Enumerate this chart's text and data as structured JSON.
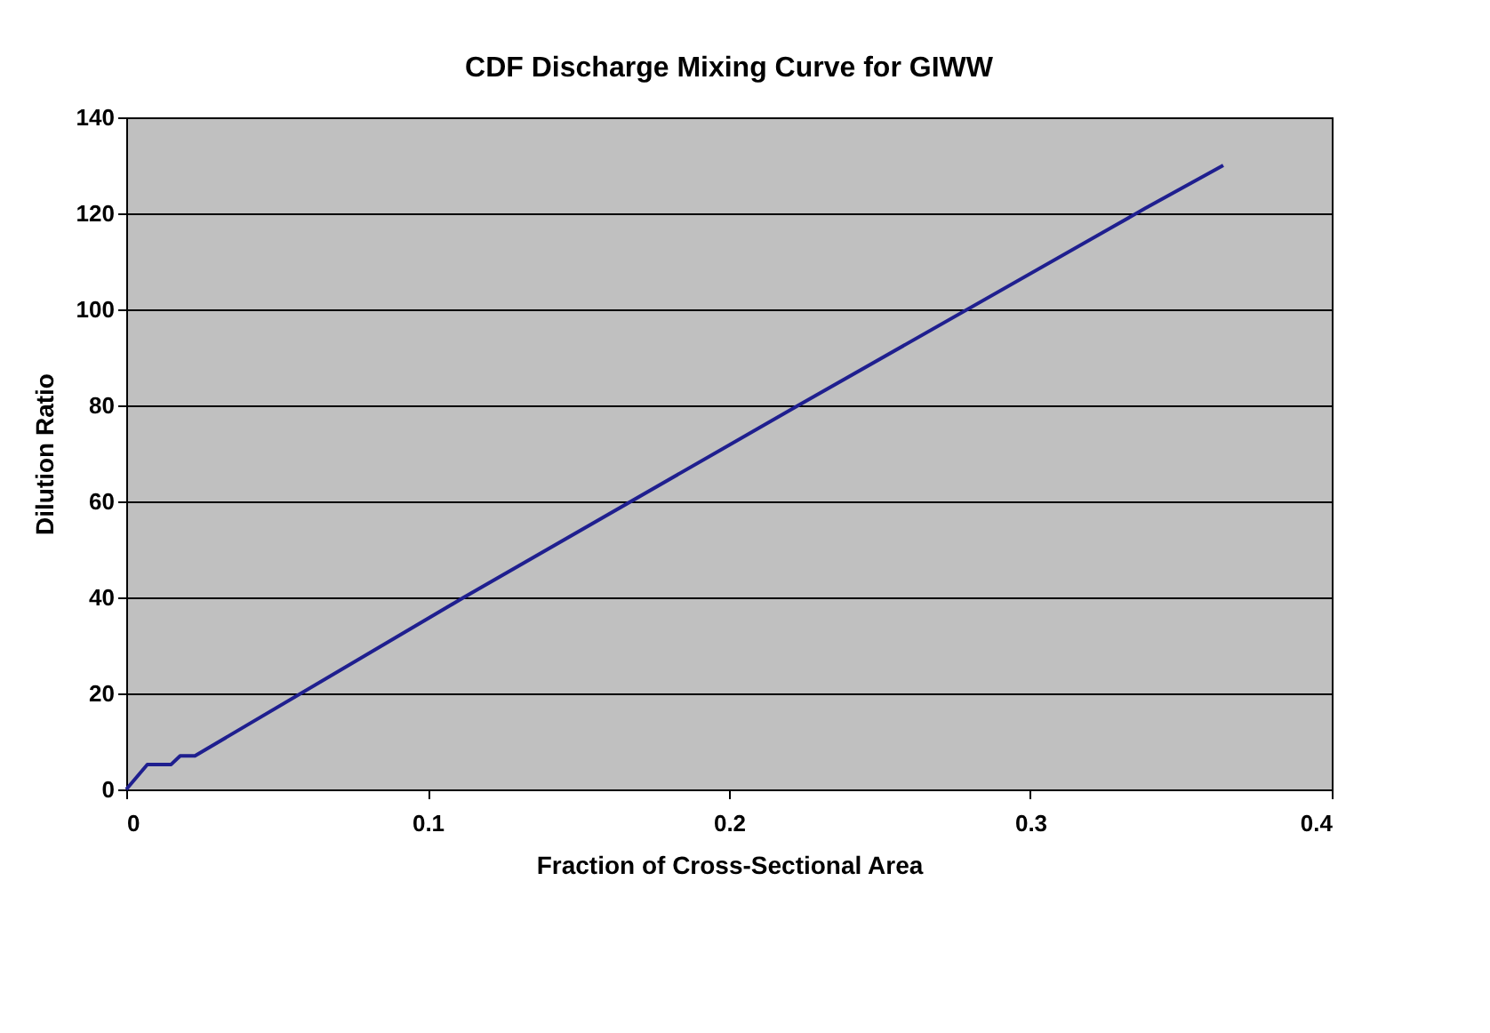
{
  "chart_data": {
    "type": "line",
    "title": "CDF Discharge Mixing Curve for GIWW",
    "xlabel": "Fraction of Cross-Sectional Area",
    "ylabel": "Dilution Ratio",
    "series": [
      {
        "color": "#1f1f8f",
        "x": [
          0,
          0.007,
          0.0149,
          0.0179,
          0.0228,
          0.112,
          0.223,
          0.338,
          0.364
        ],
        "values": [
          0,
          5.2,
          5.2,
          7,
          7,
          40,
          80,
          121,
          130
        ]
      }
    ],
    "xlim": [
      0,
      0.4
    ],
    "xticks": [
      0,
      0.1,
      0.2,
      0.3,
      0.4
    ],
    "ylim": [
      0,
      140
    ],
    "yticks": [
      0,
      20,
      40,
      60,
      80,
      100,
      120,
      140
    ],
    "grid": "y",
    "marker": "none",
    "line_style": "solid"
  }
}
